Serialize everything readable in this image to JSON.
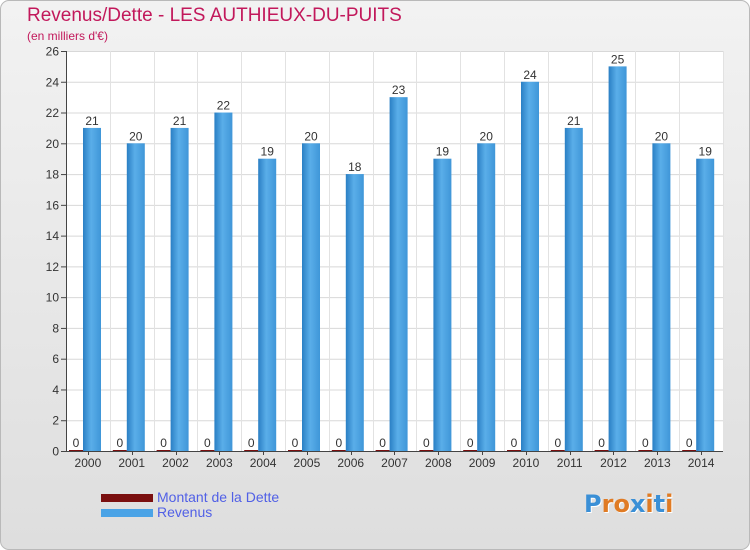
{
  "header": {
    "title": "Revenus/Dette - LES AUTHIEUX-DU-PUITS",
    "subtitle": "(en milliers d'€)"
  },
  "legend": {
    "items": [
      {
        "label": "Montant de la Dette",
        "color": "#7a0f0f"
      },
      {
        "label": "Revenus",
        "color": "#4aa3e6"
      }
    ]
  },
  "logo": {
    "text": "Proxiti",
    "colors": [
      "#3a8fd6",
      "#e07b24",
      "#e07b24",
      "#3a8fd6",
      "#e07b24",
      "#3a8fd6",
      "#e07b24"
    ]
  },
  "chart_data": {
    "type": "bar",
    "categories": [
      "2000",
      "2001",
      "2002",
      "2003",
      "2004",
      "2005",
      "2006",
      "2007",
      "2008",
      "2009",
      "2010",
      "2011",
      "2012",
      "2013",
      "2014"
    ],
    "series": [
      {
        "name": "Montant de la Dette",
        "color": "#7a0f0f",
        "values": [
          0,
          0,
          0,
          0,
          0,
          0,
          0,
          0,
          0,
          0,
          0,
          0,
          0,
          0,
          0
        ]
      },
      {
        "name": "Revenus",
        "color": "#4aa3e6",
        "values": [
          21,
          20,
          21,
          22,
          19,
          20,
          18,
          23,
          19,
          20,
          24,
          21,
          25,
          20,
          19
        ]
      }
    ],
    "ylim": [
      0,
      26
    ],
    "yticks": [
      0,
      2,
      4,
      6,
      8,
      10,
      12,
      14,
      16,
      18,
      20,
      22,
      24,
      26
    ],
    "grid": true
  }
}
